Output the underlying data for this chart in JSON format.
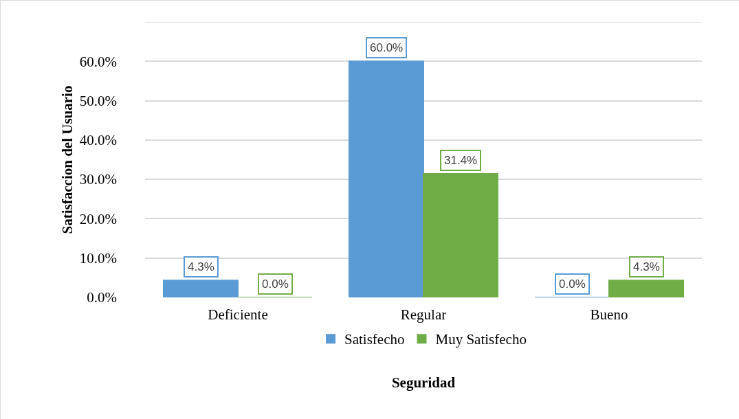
{
  "chart_data": {
    "type": "bar",
    "ylabel": "Satisfaccion del Usuario",
    "xlabel": "Seguridad",
    "categories": [
      "Deficiente",
      "Regular",
      "Bueno"
    ],
    "series": [
      {
        "name": "Satisfecho",
        "color": "#5b9bd5",
        "values": [
          4.3,
          60.0,
          0.0
        ],
        "value_labels": [
          "4.3%",
          "60.0%",
          "0.0%"
        ]
      },
      {
        "name": "Muy Satisfecho",
        "color": "#70ad47",
        "values": [
          0.0,
          31.4,
          4.3
        ],
        "value_labels": [
          "0.0%",
          "31.4%",
          "4.3%"
        ]
      }
    ],
    "ylim": [
      0,
      70
    ],
    "yticks": [
      {
        "value": 0,
        "label": "0.0%"
      },
      {
        "value": 10,
        "label": "10.0%"
      },
      {
        "value": 20,
        "label": "20.0%"
      },
      {
        "value": 30,
        "label": "30.0%"
      },
      {
        "value": 40,
        "label": "40.0%"
      },
      {
        "value": 50,
        "label": "50.0%"
      },
      {
        "value": 60,
        "label": "60.0%"
      },
      {
        "value": 70,
        "label": null
      }
    ],
    "grid": "y",
    "legend": "bottom"
  }
}
